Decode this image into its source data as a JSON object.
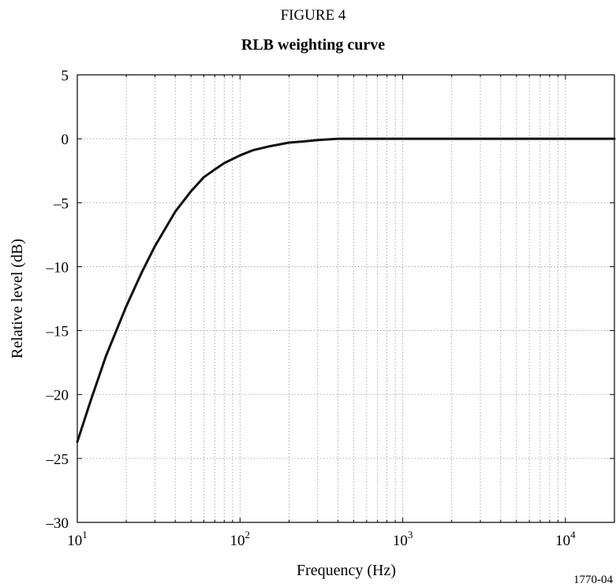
{
  "figure_label": "FIGURE 4",
  "figure_code": "1770-04",
  "chart_data": {
    "type": "line",
    "title": "RLB weighting curve",
    "xlabel": "Frequency (Hz)",
    "ylabel": "Relative level (dB)",
    "xscale": "log",
    "xlim": [
      10,
      20000
    ],
    "ylim": [
      -30,
      5
    ],
    "grid": true,
    "x_ticks": [
      {
        "value": 10,
        "base": "10",
        "exp": "1"
      },
      {
        "value": 100,
        "base": "10",
        "exp": "2"
      },
      {
        "value": 1000,
        "base": "10",
        "exp": "3"
      },
      {
        "value": 10000,
        "base": "10",
        "exp": "4"
      }
    ],
    "y_ticks": [
      {
        "value": 5,
        "label": "5"
      },
      {
        "value": 0,
        "label": "0"
      },
      {
        "value": -5,
        "label": "–5"
      },
      {
        "value": -10,
        "label": "–10"
      },
      {
        "value": -15,
        "label": "–15"
      },
      {
        "value": -20,
        "label": "–20"
      },
      {
        "value": -25,
        "label": "–25"
      },
      {
        "value": -30,
        "label": "–30"
      }
    ],
    "series": [
      {
        "color": "#111111",
        "x": [
          10,
          12,
          15,
          20,
          25,
          30,
          40,
          50,
          60,
          70,
          80,
          100,
          120,
          150,
          200,
          250,
          300,
          400,
          500,
          1000,
          2000,
          5000,
          10000,
          20000
        ],
        "y": [
          -23.7,
          -20.6,
          -17.0,
          -13.1,
          -10.4,
          -8.4,
          -5.7,
          -4.1,
          -3.0,
          -2.4,
          -1.9,
          -1.3,
          -0.9,
          -0.6,
          -0.3,
          -0.2,
          -0.1,
          0.0,
          0.0,
          0.0,
          0.0,
          0.0,
          0.0,
          0.0
        ]
      }
    ]
  }
}
